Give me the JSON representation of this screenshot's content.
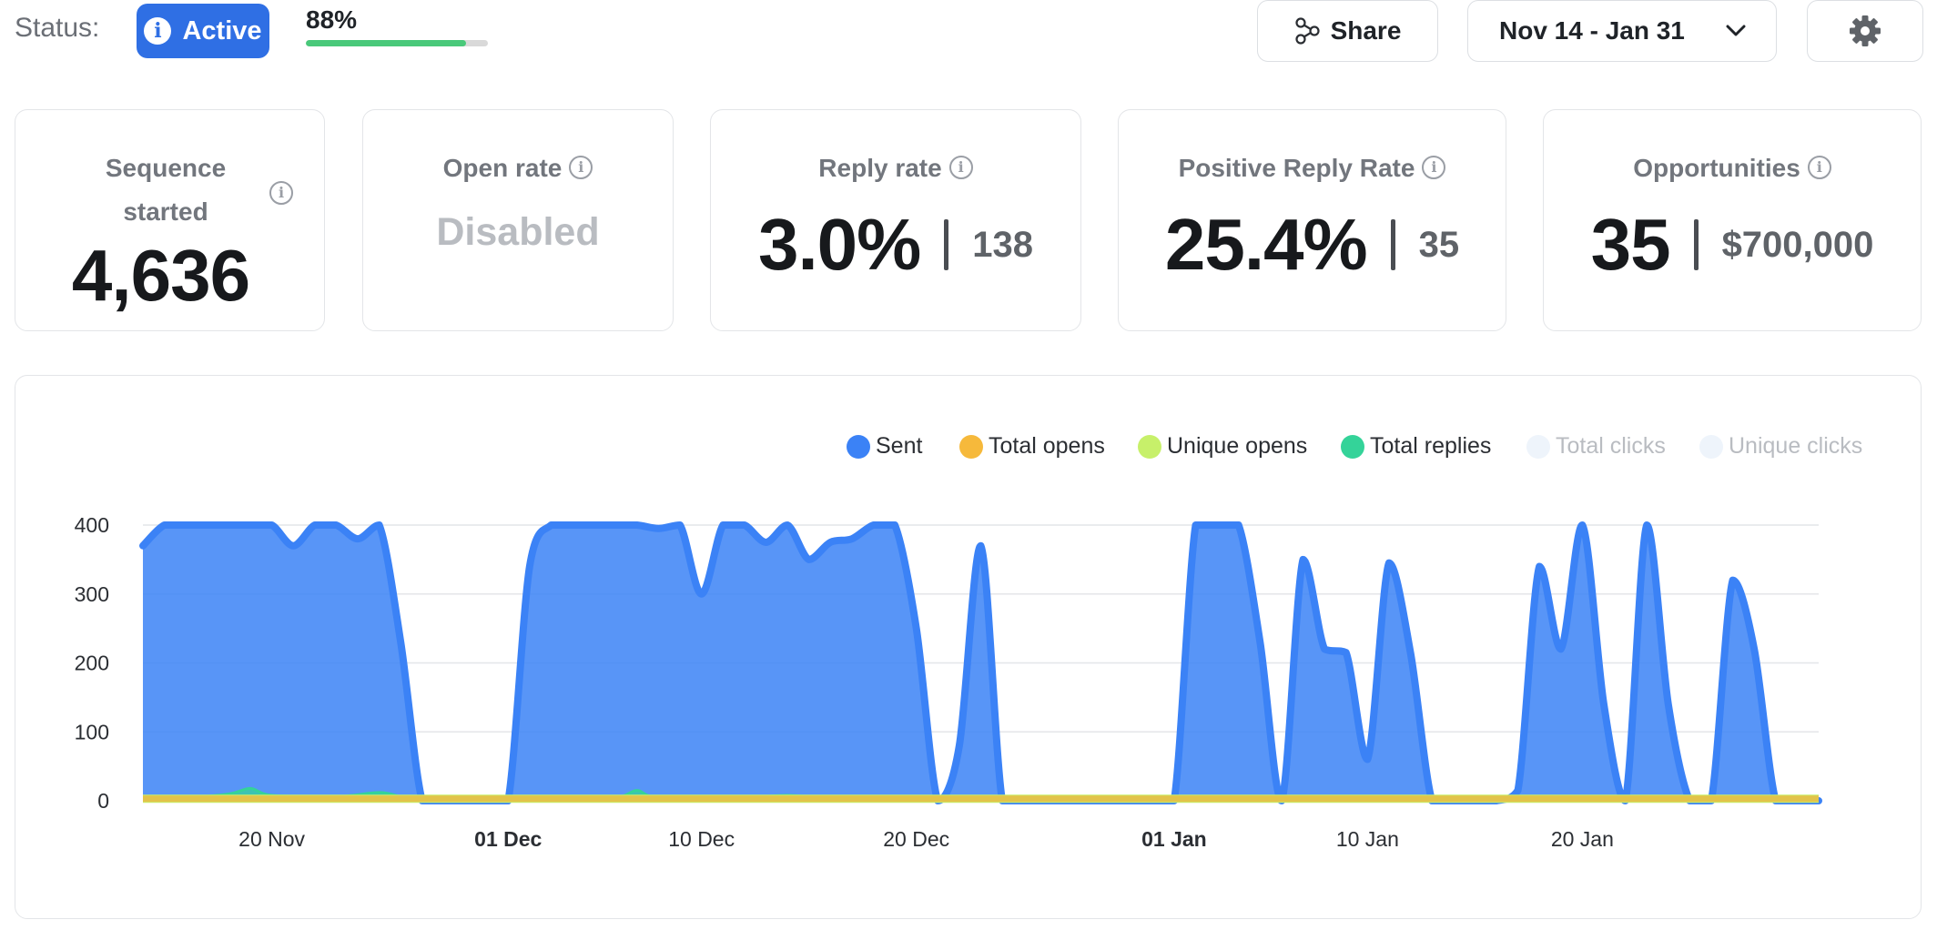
{
  "header": {
    "status_label": "Status:",
    "status_badge": "Active",
    "status_icon": "info-icon",
    "progress_text": "88%",
    "progress_fraction": 0.88,
    "share_label": "Share",
    "date_range": "Nov 14 - Jan 31"
  },
  "cards": {
    "sequence": {
      "title": "Sequence started",
      "value": "4,636"
    },
    "open_rate": {
      "title": "Open rate",
      "value": "Disabled"
    },
    "reply_rate": {
      "title": "Reply rate",
      "value": "3.0%",
      "sub": "138"
    },
    "positive_reply": {
      "title": "Positive Reply Rate",
      "value": "25.4%",
      "sub": "35"
    },
    "opportunities": {
      "title": "Opportunities",
      "value": "35",
      "sub": "$700,000"
    }
  },
  "colors": {
    "accent": "#2f6fe4",
    "progress": "#49c97a",
    "sent": "#3b82f6",
    "total_opens": "#f6b93b",
    "unique_opens": "#c7f06a",
    "total_replies": "#34d399",
    "total_clicks": "#eef4fb",
    "unique_clicks": "#eef4fb"
  },
  "legend": [
    {
      "label": "Sent",
      "color": "#3b82f6",
      "active": true
    },
    {
      "label": "Total opens",
      "color": "#f6b93b",
      "active": true
    },
    {
      "label": "Unique opens",
      "color": "#c7f06a",
      "active": true
    },
    {
      "label": "Total replies",
      "color": "#34d399",
      "active": true
    },
    {
      "label": "Total clicks",
      "color": "#eef4fb",
      "active": false
    },
    {
      "label": "Unique clicks",
      "color": "#eef4fb",
      "active": false
    }
  ],
  "chart_data": {
    "type": "area",
    "ylim": [
      0,
      400
    ],
    "yticks": [
      "0",
      "100",
      "200",
      "300",
      "400"
    ],
    "grid": true,
    "legend_position": "top-right",
    "x_start": "2023-11-14",
    "x_end": "2024-01-31",
    "xticks": [
      {
        "date": "2023-11-20",
        "label": "20 Nov",
        "bold": false
      },
      {
        "date": "2023-12-01",
        "label": "01 Dec",
        "bold": true
      },
      {
        "date": "2023-12-10",
        "label": "10 Dec",
        "bold": false
      },
      {
        "date": "2023-12-20",
        "label": "20 Dec",
        "bold": false
      },
      {
        "date": "2024-01-01",
        "label": "01 Jan",
        "bold": true
      },
      {
        "date": "2024-01-10",
        "label": "10 Jan",
        "bold": false
      },
      {
        "date": "2024-01-20",
        "label": "20 Jan",
        "bold": false
      }
    ],
    "series": [
      {
        "name": "Sent",
        "points": [
          [
            "2023-11-14",
            370
          ],
          [
            "2023-11-15",
            400
          ],
          [
            "2023-11-16",
            400
          ],
          [
            "2023-11-17",
            400
          ],
          [
            "2023-11-18",
            400
          ],
          [
            "2023-11-19",
            400
          ],
          [
            "2023-11-20",
            400
          ],
          [
            "2023-11-21",
            370
          ],
          [
            "2023-11-22",
            400
          ],
          [
            "2023-11-23",
            400
          ],
          [
            "2023-11-24",
            380
          ],
          [
            "2023-11-25",
            400
          ],
          [
            "2023-11-26",
            230
          ],
          [
            "2023-11-27",
            0
          ],
          [
            "2023-11-28",
            0
          ],
          [
            "2023-11-29",
            0
          ],
          [
            "2023-11-30",
            0
          ],
          [
            "2023-12-01",
            0
          ],
          [
            "2023-12-02",
            340
          ],
          [
            "2023-12-03",
            400
          ],
          [
            "2023-12-04",
            400
          ],
          [
            "2023-12-05",
            400
          ],
          [
            "2023-12-06",
            400
          ],
          [
            "2023-12-07",
            400
          ],
          [
            "2023-12-08",
            395
          ],
          [
            "2023-12-09",
            400
          ],
          [
            "2023-12-10",
            300
          ],
          [
            "2023-12-11",
            400
          ],
          [
            "2023-12-12",
            400
          ],
          [
            "2023-12-13",
            375
          ],
          [
            "2023-12-14",
            400
          ],
          [
            "2023-12-15",
            350
          ],
          [
            "2023-12-16",
            375
          ],
          [
            "2023-12-17",
            380
          ],
          [
            "2023-12-18",
            400
          ],
          [
            "2023-12-19",
            400
          ],
          [
            "2023-12-20",
            250
          ],
          [
            "2023-12-21",
            0
          ],
          [
            "2023-12-22",
            80
          ],
          [
            "2023-12-23",
            370
          ],
          [
            "2023-12-24",
            0
          ],
          [
            "2023-12-25",
            0
          ],
          [
            "2023-12-26",
            0
          ],
          [
            "2023-12-27",
            0
          ],
          [
            "2023-12-28",
            0
          ],
          [
            "2023-12-29",
            0
          ],
          [
            "2023-12-30",
            0
          ],
          [
            "2023-12-31",
            0
          ],
          [
            "2024-01-01",
            0
          ],
          [
            "2024-01-02",
            400
          ],
          [
            "2024-01-03",
            400
          ],
          [
            "2024-01-04",
            400
          ],
          [
            "2024-01-05",
            230
          ],
          [
            "2024-01-06",
            0
          ],
          [
            "2024-01-07",
            350
          ],
          [
            "2024-01-08",
            220
          ],
          [
            "2024-01-09",
            215
          ],
          [
            "2024-01-10",
            60
          ],
          [
            "2024-01-11",
            345
          ],
          [
            "2024-01-12",
            215
          ],
          [
            "2024-01-13",
            0
          ],
          [
            "2024-01-14",
            0
          ],
          [
            "2024-01-15",
            0
          ],
          [
            "2024-01-16",
            0
          ],
          [
            "2024-01-17",
            15
          ],
          [
            "2024-01-18",
            340
          ],
          [
            "2024-01-19",
            220
          ],
          [
            "2024-01-20",
            400
          ],
          [
            "2024-01-21",
            140
          ],
          [
            "2024-01-22",
            0
          ],
          [
            "2024-01-23",
            400
          ],
          [
            "2024-01-24",
            140
          ],
          [
            "2024-01-25",
            0
          ],
          [
            "2024-01-26",
            0
          ],
          [
            "2024-01-27",
            320
          ],
          [
            "2024-01-28",
            220
          ],
          [
            "2024-01-29",
            0
          ],
          [
            "2024-01-30",
            0
          ],
          [
            "2024-01-31",
            0
          ]
        ]
      },
      {
        "name": "Total replies",
        "points": [
          [
            "2023-11-14",
            5
          ],
          [
            "2023-11-16",
            5
          ],
          [
            "2023-11-18",
            10
          ],
          [
            "2023-11-19",
            18
          ],
          [
            "2023-11-20",
            8
          ],
          [
            "2023-11-23",
            6
          ],
          [
            "2023-11-25",
            12
          ],
          [
            "2023-11-26",
            6
          ],
          [
            "2023-11-27",
            0
          ],
          [
            "2023-12-01",
            0
          ],
          [
            "2023-12-03",
            5
          ],
          [
            "2023-12-06",
            5
          ],
          [
            "2023-12-07",
            15
          ],
          [
            "2023-12-08",
            5
          ],
          [
            "2023-12-12",
            5
          ],
          [
            "2023-12-14",
            8
          ],
          [
            "2023-12-16",
            4
          ],
          [
            "2023-12-19",
            5
          ],
          [
            "2023-12-21",
            0
          ],
          [
            "2024-01-02",
            4
          ],
          [
            "2024-01-06",
            4
          ],
          [
            "2024-01-08",
            6
          ],
          [
            "2024-01-12",
            4
          ],
          [
            "2024-01-18",
            4
          ],
          [
            "2024-01-23",
            4
          ],
          [
            "2024-01-27",
            4
          ]
        ]
      },
      {
        "name": "Unique opens",
        "points": [
          [
            "2023-11-14",
            3
          ],
          [
            "2024-01-31",
            3
          ]
        ]
      },
      {
        "name": "Total opens",
        "points": [
          [
            "2023-11-14",
            3
          ],
          [
            "2024-01-31",
            3
          ]
        ]
      }
    ]
  }
}
